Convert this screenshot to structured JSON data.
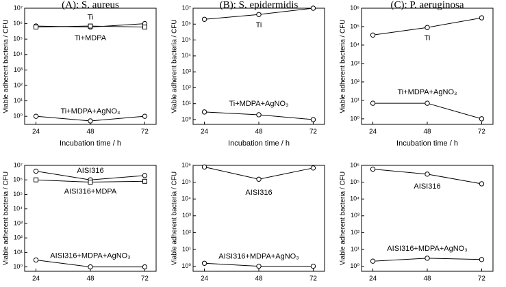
{
  "chart_data": [
    {
      "type": "line",
      "title": "(A): S. aureus",
      "x_label": "Incubation time / h",
      "y_label": "Viable adherent bacteria / CFU",
      "log_y": true,
      "x": [
        24,
        48,
        72
      ],
      "xlim": [
        19,
        77
      ],
      "xticks": [
        24,
        48,
        72
      ],
      "ylim": [
        0.3,
        10000000
      ],
      "yticks": [
        {
          "value": 1,
          "label": "10⁰"
        },
        {
          "value": 10,
          "label": "10¹"
        },
        {
          "value": 100,
          "label": "10²"
        },
        {
          "value": 1000,
          "label": "10³"
        },
        {
          "value": 10000,
          "label": "10⁴"
        },
        {
          "value": 100000,
          "label": "10⁵"
        },
        {
          "value": 1000000,
          "label": "10⁶"
        },
        {
          "value": 10000000,
          "label": "10⁷"
        }
      ],
      "series": [
        {
          "name": "Ti",
          "color": "#000000",
          "marker": "circle",
          "values": [
            700000,
            600000,
            1000000
          ]
        },
        {
          "name": "Ti+MDPA",
          "color": "#000000",
          "marker": "square",
          "values": [
            600000,
            700000,
            600000
          ]
        },
        {
          "name": "Ti+MDPA+AgNO₃",
          "color": "#000000",
          "marker": "circle",
          "values": [
            1,
            0.5,
            1
          ]
        }
      ]
    },
    {
      "type": "line",
      "title": "(B): S. epidermidis",
      "x_label": "Incubation time / h",
      "y_label": "Viable adherent bacteria / CFU",
      "log_y": true,
      "x": [
        24,
        48,
        72
      ],
      "xlim": [
        19,
        77
      ],
      "xticks": [
        24,
        48,
        72
      ],
      "ylim": [
        0.5,
        10000000
      ],
      "yticks": [
        {
          "value": 1,
          "label": "10⁰"
        },
        {
          "value": 10,
          "label": "10¹"
        },
        {
          "value": 100,
          "label": "10²"
        },
        {
          "value": 1000,
          "label": "10³"
        },
        {
          "value": 10000,
          "label": "10⁴"
        },
        {
          "value": 100000,
          "label": "10⁵"
        },
        {
          "value": 1000000,
          "label": "10⁶"
        },
        {
          "value": 10000000,
          "label": "10⁷"
        }
      ],
      "series": [
        {
          "name": "Ti",
          "color": "#000000",
          "marker": "circle",
          "values": [
            2000000,
            4000000,
            10000000
          ]
        },
        {
          "name": "Ti+MDPA+AgNO₃",
          "color": "#000000",
          "marker": "circle",
          "values": [
            3,
            2,
            1
          ]
        }
      ]
    },
    {
      "type": "line",
      "title": "(C): P. aeruginosa",
      "x_label": "Incubation time / h",
      "y_label": "Viable adherent bacteria / CFU",
      "log_y": true,
      "x": [
        24,
        48,
        72
      ],
      "xlim": [
        19,
        77
      ],
      "xticks": [
        24,
        48,
        72
      ],
      "ylim": [
        0.5,
        1000000
      ],
      "yticks": [
        {
          "value": 1,
          "label": "10⁰"
        },
        {
          "value": 10,
          "label": "10¹"
        },
        {
          "value": 100,
          "label": "10²"
        },
        {
          "value": 1000,
          "label": "10³"
        },
        {
          "value": 10000,
          "label": "10⁴"
        },
        {
          "value": 100000,
          "label": "10⁵"
        },
        {
          "value": 1000000,
          "label": "10⁶"
        }
      ],
      "series": [
        {
          "name": "Ti",
          "color": "#000000",
          "marker": "circle",
          "values": [
            35000,
            90000,
            300000
          ]
        },
        {
          "name": "Ti+MDPA+AgNO₃",
          "color": "#000000",
          "marker": "circle",
          "values": [
            7,
            7,
            1
          ]
        }
      ]
    },
    {
      "type": "line",
      "x_label": "Incubation time / h",
      "y_label": "Viable adherent bacteria / CFU",
      "log_y": true,
      "x": [
        24,
        48,
        72
      ],
      "xlim": [
        19,
        77
      ],
      "xticks": [
        24,
        48,
        72
      ],
      "ylim": [
        0.5,
        10000000
      ],
      "yticks": [
        {
          "value": 1,
          "label": "10⁰"
        },
        {
          "value": 10,
          "label": "10¹"
        },
        {
          "value": 100,
          "label": "10²"
        },
        {
          "value": 1000,
          "label": "10³"
        },
        {
          "value": 10000,
          "label": "10⁴"
        },
        {
          "value": 100000,
          "label": "10⁵"
        },
        {
          "value": 1000000,
          "label": "10⁶"
        },
        {
          "value": 10000000,
          "label": "10⁷"
        }
      ],
      "series": [
        {
          "name": "AISI316",
          "color": "#000000",
          "marker": "circle",
          "values": [
            4000000,
            1000000,
            2000000
          ]
        },
        {
          "name": "AISI316+MDPA",
          "color": "#000000",
          "marker": "square",
          "values": [
            1000000,
            700000,
            800000
          ]
        },
        {
          "name": "AISI316+MDPA+AgNO₃",
          "color": "#000000",
          "marker": "circle",
          "values": [
            3,
            1,
            1
          ]
        }
      ]
    },
    {
      "type": "line",
      "x_label": "Incubation time / h",
      "y_label": "Viable adherent bacteria / CFU",
      "log_y": true,
      "x": [
        24,
        48,
        72
      ],
      "xlim": [
        19,
        77
      ],
      "xticks": [
        24,
        48,
        72
      ],
      "ylim": [
        0.5,
        1000000
      ],
      "yticks": [
        {
          "value": 1,
          "label": "10⁰"
        },
        {
          "value": 10,
          "label": "10¹"
        },
        {
          "value": 100,
          "label": "10²"
        },
        {
          "value": 1000,
          "label": "10³"
        },
        {
          "value": 10000,
          "label": "10⁴"
        },
        {
          "value": 100000,
          "label": "10⁵"
        },
        {
          "value": 1000000,
          "label": "10⁶"
        }
      ],
      "series": [
        {
          "name": "AISI316",
          "color": "#000000",
          "marker": "circle",
          "values": [
            800000,
            150000,
            700000
          ]
        },
        {
          "name": "AISI316+MDPA+AgNO₃",
          "color": "#000000",
          "marker": "circle",
          "values": [
            1.5,
            1,
            1
          ]
        }
      ]
    },
    {
      "type": "line",
      "x_label": "Incubation time / h",
      "y_label": "Viable adherent bacteria / CFU",
      "log_y": true,
      "x": [
        24,
        48,
        72
      ],
      "xlim": [
        19,
        77
      ],
      "xticks": [
        24,
        48,
        72
      ],
      "ylim": [
        0.5,
        1000000
      ],
      "yticks": [
        {
          "value": 1,
          "label": "10⁰"
        },
        {
          "value": 10,
          "label": "10¹"
        },
        {
          "value": 100,
          "label": "10²"
        },
        {
          "value": 1000,
          "label": "10³"
        },
        {
          "value": 10000,
          "label": "10⁴"
        },
        {
          "value": 100000,
          "label": "10⁵"
        },
        {
          "value": 1000000,
          "label": "10⁶"
        }
      ],
      "series": [
        {
          "name": "AISI316",
          "color": "#000000",
          "marker": "circle",
          "values": [
            600000,
            300000,
            80000
          ]
        },
        {
          "name": "AISI316+MDPA+AgNO₃",
          "color": "#000000",
          "marker": "circle",
          "values": [
            2,
            3,
            2.5
          ]
        }
      ]
    }
  ]
}
